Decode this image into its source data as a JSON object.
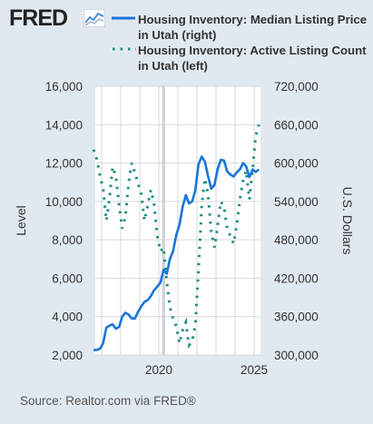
{
  "brand": {
    "logo_text": "FRED",
    "logo_icon": "fred-chart-icon"
  },
  "source": "Source: Realtor.com via FRED®",
  "colors": {
    "price": "#1a75d8",
    "count": "#1e8c80",
    "plot_bg": "#ffffff",
    "page_bg": "#e1e9f0",
    "grid": "#d4d9de",
    "recession": "#cfd3d8"
  },
  "chart_data": {
    "type": "line",
    "title": "",
    "xlabel": "",
    "ylabel_left": "Level",
    "ylabel_right": "U.S. Dollars",
    "xlim": [
      2016.67,
      2025.33
    ],
    "ylim_left": [
      2000,
      16000
    ],
    "ylim_right": [
      300000,
      720000
    ],
    "left_ticks": [
      2000,
      4000,
      6000,
      8000,
      10000,
      12000,
      14000,
      16000
    ],
    "left_tick_labels": [
      "2,000",
      "4,000",
      "6,000",
      "8,000",
      "10,000",
      "12,000",
      "14,000",
      "16,000"
    ],
    "right_ticks": [
      300000,
      360000,
      420000,
      480000,
      540000,
      600000,
      660000,
      720000
    ],
    "right_tick_labels": [
      "300,000",
      "360,000",
      "420,000",
      "480,000",
      "540,000",
      "600,000",
      "660,000",
      "720,000"
    ],
    "x_ticks": [
      2020,
      2025
    ],
    "x_tick_labels": [
      "2020",
      "2025"
    ],
    "grid": true,
    "legend_position": "top",
    "recession": [
      2020.17,
      2020.33
    ],
    "series": [
      {
        "name": "Housing Inventory: Median Listing Price in Utah (right)",
        "axis": "right",
        "style": "solid",
        "x": [
          2016.58,
          2016.75,
          2016.92,
          2017.08,
          2017.25,
          2017.42,
          2017.58,
          2017.75,
          2017.92,
          2018.08,
          2018.25,
          2018.42,
          2018.58,
          2018.75,
          2018.92,
          2019.08,
          2019.25,
          2019.42,
          2019.58,
          2019.75,
          2019.92,
          2020.08,
          2020.25,
          2020.42,
          2020.58,
          2020.75,
          2020.92,
          2021.08,
          2021.25,
          2021.42,
          2021.58,
          2021.75,
          2021.92,
          2022.08,
          2022.25,
          2022.42,
          2022.58,
          2022.75,
          2022.92,
          2023.08,
          2023.25,
          2023.42,
          2023.58,
          2023.75,
          2023.92,
          2024.08,
          2024.25,
          2024.42,
          2024.58,
          2024.75,
          2024.92,
          2025.08,
          2025.25
        ],
        "values": [
          308000,
          308000,
          310000,
          318000,
          343000,
          346000,
          348000,
          341000,
          344000,
          360000,
          366000,
          363000,
          357000,
          357000,
          368000,
          376000,
          383000,
          386000,
          392000,
          401000,
          407000,
          413000,
          433000,
          427000,
          450000,
          462000,
          488000,
          503000,
          532000,
          550000,
          537000,
          540000,
          558000,
          598000,
          610000,
          602000,
          580000,
          560000,
          566000,
          590000,
          605000,
          604000,
          587000,
          582000,
          579000,
          585000,
          590000,
          600000,
          595000,
          578000,
          590000,
          586000,
          590000
        ]
      },
      {
        "name": "Housing Inventory: Active Listing Count in Utah (left)",
        "axis": "left",
        "style": "dotted",
        "x": [
          2016.58,
          2016.75,
          2016.92,
          2017.08,
          2017.25,
          2017.42,
          2017.58,
          2017.75,
          2017.92,
          2018.08,
          2018.25,
          2018.42,
          2018.58,
          2018.75,
          2018.92,
          2019.08,
          2019.25,
          2019.42,
          2019.58,
          2019.75,
          2019.92,
          2020.08,
          2020.25,
          2020.42,
          2020.58,
          2020.75,
          2020.92,
          2021.08,
          2021.25,
          2021.42,
          2021.58,
          2021.75,
          2021.92,
          2022.08,
          2022.25,
          2022.42,
          2022.58,
          2022.75,
          2022.92,
          2023.08,
          2023.25,
          2023.42,
          2023.58,
          2023.75,
          2023.92,
          2024.08,
          2024.25,
          2024.42,
          2024.58,
          2024.75,
          2024.92,
          2025.08,
          2025.25
        ],
        "values": [
          12700,
          12200,
          11300,
          10700,
          9000,
          10200,
          11800,
          11300,
          9800,
          8600,
          9200,
          11000,
          12000,
          11500,
          10900,
          10400,
          9000,
          9800,
          10600,
          9900,
          8200,
          7400,
          7600,
          5800,
          4500,
          3900,
          3500,
          2600,
          3300,
          3700,
          2500,
          2700,
          3600,
          6400,
          9800,
          11200,
          10400,
          8400,
          7600,
          8700,
          10000,
          9700,
          8600,
          8200,
          7800,
          8700,
          10100,
          11100,
          11600,
          10100,
          11700,
          13400,
          14000
        ]
      }
    ]
  }
}
